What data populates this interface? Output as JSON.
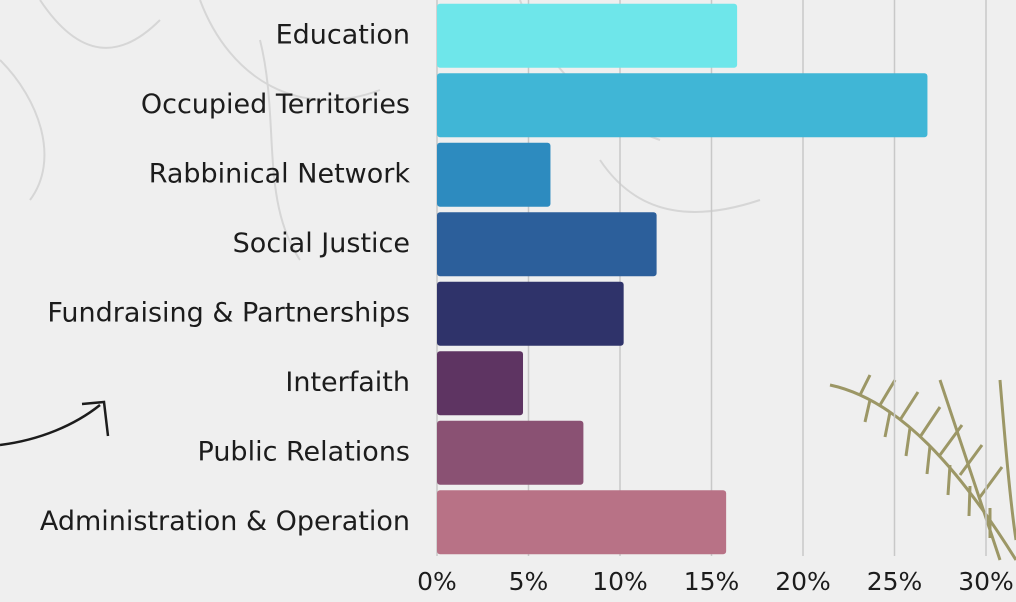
{
  "chart_data": {
    "type": "barh",
    "categories": [
      "Education",
      "Occupied Territories",
      "Rabbinical Network",
      "Social Justice",
      "Fundraising & Partnerships",
      "Interfaith",
      "Public Relations",
      "Administration & Operation"
    ],
    "values": [
      16.4,
      26.8,
      6.2,
      12.0,
      10.2,
      4.7,
      8.0,
      15.8
    ],
    "colors": [
      "#6ee6ea",
      "#40b6d6",
      "#2d8bbf",
      "#2c5f9b",
      "#2f336a",
      "#5e3462",
      "#8a5173",
      "#b87286"
    ],
    "xlim": [
      0,
      30
    ],
    "xticks": [
      {
        "value": 0,
        "label": "0%"
      },
      {
        "value": 5,
        "label": "5%"
      },
      {
        "value": 10,
        "label": "10%"
      },
      {
        "value": 15,
        "label": "15%"
      },
      {
        "value": 20,
        "label": "20%"
      },
      {
        "value": 25,
        "label": "25%"
      },
      {
        "value": 30,
        "label": "30%"
      }
    ],
    "grid": true
  }
}
